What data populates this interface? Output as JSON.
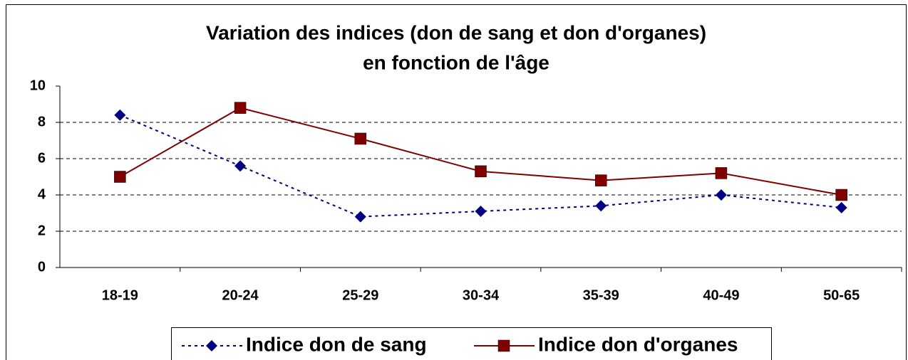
{
  "chart_data": {
    "type": "line",
    "title": [
      "Variation des indices (don de sang et don d'organes)",
      "en fonction de l'âge"
    ],
    "categories": [
      "18-19",
      "20-24",
      "25-29",
      "30-34",
      "35-39",
      "40-49",
      "50-65"
    ],
    "series": [
      {
        "name": "Indice don de sang",
        "color": "#000080",
        "dash": true,
        "marker": "diamond",
        "values": [
          8.4,
          5.6,
          2.8,
          3.1,
          3.4,
          4.0,
          3.3
        ]
      },
      {
        "name": "Indice don d'organes",
        "color": "#800000",
        "dash": false,
        "marker": "square",
        "values": [
          5.0,
          8.8,
          7.1,
          5.3,
          4.8,
          5.2,
          4.0
        ]
      }
    ],
    "ylim": [
      0,
      10
    ],
    "yticks": [
      0,
      2,
      4,
      6,
      8,
      10
    ],
    "grid": true,
    "legend": "bottom"
  }
}
